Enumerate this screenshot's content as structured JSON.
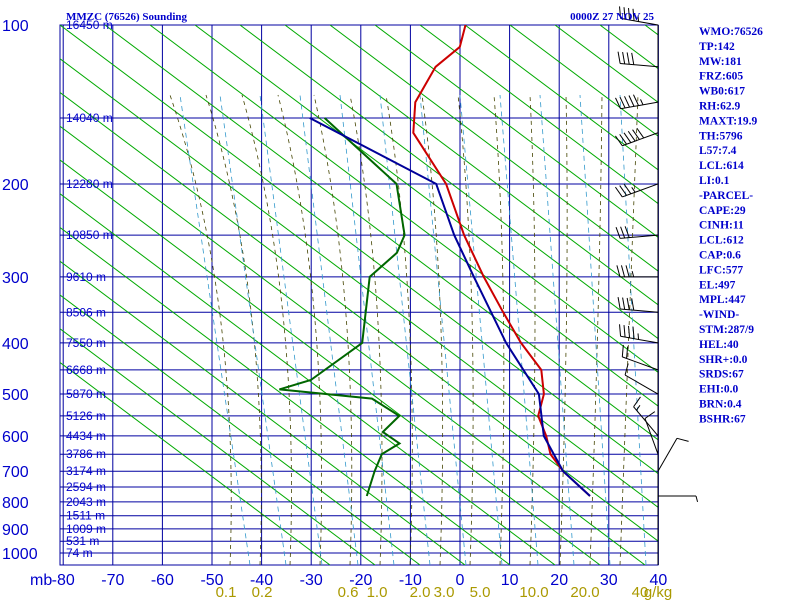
{
  "chart_data": {
    "type": "skew-t log-p sounding",
    "title": "MMZC (76526) Sounding",
    "valid_time": "0000Z 27 NOV 25",
    "pressure_labels": [
      "100",
      "200",
      "300",
      "400",
      "500",
      "600",
      "700",
      "800",
      "900",
      "1000"
    ],
    "pressure_unit": "mb",
    "temperature_labels": [
      "-80",
      "-70",
      "-60",
      "-50",
      "-40",
      "-30",
      "-20",
      "-10",
      "0",
      "10",
      "20",
      "30",
      "40"
    ],
    "mixing_ratio_labels": [
      "0.1",
      "0.2",
      "0.6",
      "1.0",
      "2.0",
      "3.0",
      "5.0",
      "10.0",
      "20.0",
      "40",
      "g/kg"
    ],
    "height_labels": [
      "16450 m",
      "14040 m",
      "12280 m",
      "10850 m",
      "9610 m",
      "8506 m",
      "7550 m",
      "6668 m",
      "5870 m",
      "5126 m",
      "4434 m",
      "3786 m",
      "3174 m",
      "2594 m",
      "2043 m",
      "1511 m",
      "1009 m",
      "531 m",
      "74 m"
    ],
    "series": [
      {
        "name": "Temperature",
        "color": "#cc0000",
        "points": [
          [
            100,
            -75
          ],
          [
            110,
            -73
          ],
          [
            120,
            -75
          ],
          [
            140,
            -74
          ],
          [
            160,
            -70
          ],
          [
            200,
            -56
          ],
          [
            250,
            -45
          ],
          [
            300,
            -35
          ],
          [
            350,
            -26
          ],
          [
            400,
            -18
          ],
          [
            450,
            -10
          ],
          [
            500,
            -6
          ],
          [
            550,
            -4
          ],
          [
            600,
            0.5
          ],
          [
            650,
            4
          ],
          [
            700,
            9
          ],
          [
            780,
            18
          ]
        ]
      },
      {
        "name": "Dewpoint",
        "color": "#006600",
        "points": [
          [
            150,
            -90
          ],
          [
            200,
            -66
          ],
          [
            250,
            -57
          ],
          [
            270,
            -56
          ],
          [
            300,
            -58
          ],
          [
            400,
            -50
          ],
          [
            470,
            -55
          ],
          [
            490,
            -60
          ],
          [
            510,
            -40
          ],
          [
            550,
            -32
          ],
          [
            590,
            -33
          ],
          [
            620,
            -28
          ],
          [
            650,
            -30
          ],
          [
            700,
            -29
          ],
          [
            780,
            -27
          ]
        ]
      },
      {
        "name": "Parcel",
        "color": "#000099",
        "points": [
          [
            150,
            -93
          ],
          [
            200,
            -58
          ],
          [
            250,
            -47
          ],
          [
            300,
            -37
          ],
          [
            400,
            -21
          ],
          [
            500,
            -7
          ],
          [
            600,
            0
          ],
          [
            700,
            9
          ],
          [
            780,
            18
          ]
        ]
      }
    ],
    "wind_barbs": [
      {
        "p": 100,
        "dir": 280,
        "spd": 45
      },
      {
        "p": 120,
        "dir": 275,
        "spd": 40
      },
      {
        "p": 140,
        "dir": 260,
        "spd": 55
      },
      {
        "p": 160,
        "dir": 250,
        "spd": 60
      },
      {
        "p": 200,
        "dir": 250,
        "spd": 35
      },
      {
        "p": 250,
        "dir": 265,
        "spd": 30
      },
      {
        "p": 300,
        "dir": 270,
        "spd": 35
      },
      {
        "p": 350,
        "dir": 275,
        "spd": 40
      },
      {
        "p": 400,
        "dir": 280,
        "spd": 45
      },
      {
        "p": 450,
        "dir": 290,
        "spd": 20
      },
      {
        "p": 500,
        "dir": 300,
        "spd": 10
      },
      {
        "p": 600,
        "dir": 320,
        "spd": 15
      },
      {
        "p": 650,
        "dir": 340,
        "spd": 10
      },
      {
        "p": 700,
        "dir": 30,
        "spd": 10
      },
      {
        "p": 780,
        "dir": 90,
        "spd": 5
      }
    ]
  },
  "stats": [
    "WMO:76526",
    "TP:142",
    "MW:181",
    "FRZ:605",
    "WB0:617",
    "RH:62.9",
    "MAXT:19.9",
    "TH:5796",
    "L57:7.4",
    "LCL:614",
    "LI:0.1",
    "-PARCEL-",
    "CAPE:29",
    "CINH:11",
    "LCL:612",
    "CAP:0.6",
    "LFC:577",
    "EL:497",
    "MPL:447",
    "-WIND-",
    "STM:287/9",
    "HEL:40",
    "SHR+:0.0",
    "SRDS:67",
    "EHI:0.0",
    "BRN:0.4",
    "BSHR:67"
  ],
  "colors": {
    "grid": "#0000a0",
    "dry_adiabat": "#00aa00",
    "moist_adiabat": "#444400",
    "mixing_ratio": "#3399cc",
    "axis_text": "#0000cc",
    "mixing_text": "#aa9900",
    "barb": "#000000"
  }
}
